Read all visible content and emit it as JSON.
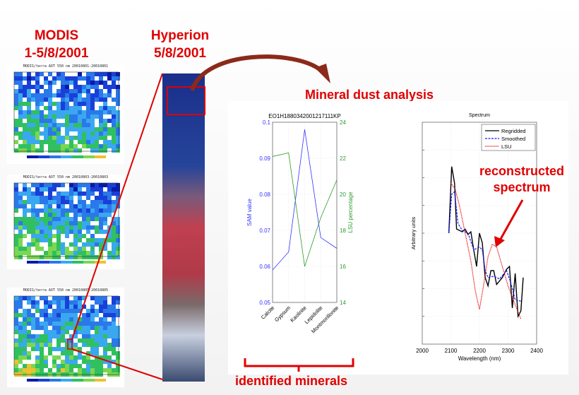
{
  "titles": {
    "modis": "MODIS",
    "modis_dates": "1-5/8/2001",
    "hyperion": "Hyperion",
    "hyperion_date": "5/8/2001",
    "analysis": "Mineral dust analysis",
    "minerals": "identified minerals",
    "reconstructed": "reconstructed spectrum"
  },
  "maps": [
    {
      "title": "MODIS/terra AOT 550 nm 20010801-20010801"
    },
    {
      "title": "MODIS/terra AOT 550 nm 20010803-20010803"
    },
    {
      "title": "MODIS/terra AOT 550 nm 20010805-20010805"
    }
  ],
  "colors": {
    "accent": "#e00000",
    "arrow": "#8b2a1a",
    "sam": "#3333ff",
    "lsu": "#2a9a2a"
  },
  "chart_data": [
    {
      "type": "line",
      "title": "EO1H1880342001217111KP",
      "categories": [
        "Calcite",
        "Gypsum",
        "Kaolinite",
        "Lepidolite",
        "Montmorillonite"
      ],
      "series": [
        {
          "name": "SAM value",
          "axis": "left",
          "values": [
            0.059,
            0.064,
            0.098,
            0.068,
            0.065
          ]
        },
        {
          "name": "LSU percentage",
          "axis": "right",
          "values": [
            22.1,
            22.3,
            16.0,
            18.7,
            20.8
          ]
        }
      ],
      "ylabel": "SAM value",
      "ylim": [
        0.05,
        0.1
      ],
      "yticks": [
        "0.05",
        "0.06",
        "0.07",
        "0.08",
        "0.09",
        "0.1"
      ],
      "y2label": "LSU percentage",
      "y2lim": [
        14,
        24
      ],
      "y2ticks": [
        "14",
        "16",
        "18",
        "20",
        "22",
        "24"
      ],
      "grid": true
    },
    {
      "type": "line",
      "title": "Spectrum",
      "xlabel": "Wavelength (nm)",
      "ylabel": "Arbitrary units",
      "xlim": [
        2000,
        2400
      ],
      "xticks": [
        "2000",
        "2100",
        "2200",
        "2300",
        "2400"
      ],
      "ylim": [
        0,
        8
      ],
      "grid": true,
      "legend": "top-right",
      "series": [
        {
          "name": "Regridded",
          "style": "solid",
          "color": "#000000",
          "x": [
            2093,
            2103,
            2113,
            2120,
            2140,
            2150,
            2160,
            2170,
            2180,
            2190,
            2200,
            2210,
            2220,
            2230,
            2240,
            2250,
            2260,
            2280,
            2295,
            2305,
            2315,
            2325,
            2335,
            2345,
            2353
          ],
          "y": [
            4.0,
            6.4,
            5.8,
            4.15,
            4.05,
            4.15,
            3.95,
            4.05,
            3.4,
            2.8,
            4.0,
            3.65,
            2.4,
            2.1,
            2.65,
            2.65,
            2.15,
            2.4,
            2.7,
            2.8,
            1.3,
            2.55,
            1.0,
            1.2,
            2.4
          ]
        },
        {
          "name": "Smoothed",
          "style": "dashed",
          "color": "#1a1aff",
          "x": [
            2093,
            2103,
            2113,
            2125,
            2140,
            2160,
            2180,
            2200,
            2210,
            2220,
            2230,
            2250,
            2270,
            2295,
            2310,
            2325,
            2345
          ],
          "y": [
            4.0,
            5.4,
            5.5,
            4.35,
            4.1,
            4.0,
            3.4,
            3.5,
            3.4,
            2.65,
            2.4,
            2.45,
            2.35,
            2.65,
            2.2,
            1.6,
            1.55
          ]
        },
        {
          "name": "LSU",
          "style": "dotted",
          "color": "#e00000",
          "x": [
            2100,
            2115,
            2130,
            2150,
            2170,
            2185,
            2200,
            2215,
            2230,
            2245,
            2260,
            2280,
            2300,
            2320,
            2345
          ],
          "y": [
            5.8,
            5.6,
            5.0,
            4.0,
            3.0,
            1.95,
            1.25,
            2.15,
            3.15,
            3.6,
            3.5,
            2.8,
            2.1,
            1.55,
            0.9
          ]
        }
      ]
    }
  ]
}
